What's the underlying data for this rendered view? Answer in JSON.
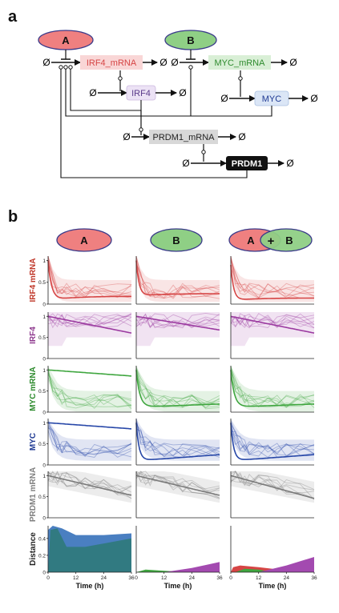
{
  "panels": {
    "a": "a",
    "b": "b"
  },
  "network": {
    "inputs": [
      {
        "label": "A",
        "color": "#ef8080"
      },
      {
        "label": "B",
        "color": "#8fcf85"
      }
    ],
    "nodes": {
      "irf4_mrna": "IRF4_mRNA",
      "irf4": "IRF4",
      "myc_mrna": "MYC_mRNA",
      "myc": "MYC",
      "prdm1_mrna": "PRDM1_mRNA",
      "prdm1": "PRDM1"
    },
    "sink_symbol": "Ø"
  },
  "conditions": [
    {
      "label": "A"
    },
    {
      "label": "B"
    },
    {
      "label_a": "A",
      "plus": "+",
      "label_b": "B"
    }
  ],
  "row_labels": [
    {
      "text": "IRF4 mRNA",
      "color": "#c0392b"
    },
    {
      "text": "IRF4",
      "color": "#8e3a8e"
    },
    {
      "text": "MYC mRNA",
      "color": "#2e8b2e"
    },
    {
      "text": "MYC",
      "color": "#1f3a93"
    },
    {
      "text": "PRDM1 mRNA",
      "color": "#808080"
    },
    {
      "text": "Distance",
      "color": "#222222"
    }
  ],
  "axes": {
    "y_ticks_unit": [
      "0",
      "0.5",
      "1"
    ],
    "y_ticks_distance": [
      "0",
      "0.2",
      "0.4"
    ],
    "x_ticks": [
      "0",
      "12",
      "24",
      "36"
    ],
    "x_label": "Time (h)"
  },
  "colors": {
    "irf4_mrna": "#d64545",
    "irf4": "#9b3aa0",
    "myc_mrna": "#3fa63f",
    "myc": "#2747a8",
    "prdm1_mrna": "#7a7a7a",
    "dist_blue": "#4a7fc1",
    "dist_teal": "#2f7a7a",
    "dist_green": "#3fa63f",
    "dist_red": "#d64545",
    "dist_purple": "#a34ab0"
  }
}
